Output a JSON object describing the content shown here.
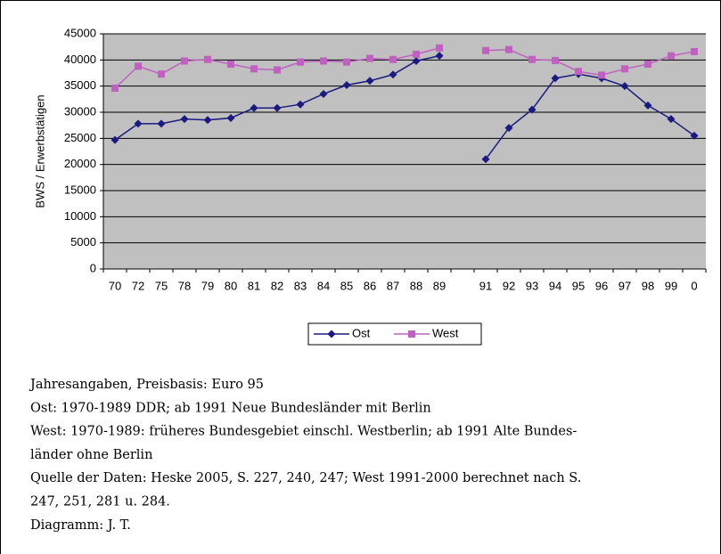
{
  "chart_data": {
    "type": "line",
    "y_label": "BWS  /  Erwerbstätigen",
    "categories": [
      "70",
      "72",
      "75",
      "78",
      "79",
      "80",
      "81",
      "82",
      "83",
      "84",
      "85",
      "86",
      "87",
      "88",
      "89",
      null,
      "91",
      "92",
      "93",
      "94",
      "95",
      "96",
      "97",
      "98",
      "99",
      "0"
    ],
    "series": [
      {
        "name": "Ost",
        "color": "#1a1a80",
        "marker": "diamond",
        "values": [
          24700,
          27800,
          27800,
          28700,
          28500,
          28900,
          30800,
          30800,
          31500,
          33500,
          35200,
          36000,
          37200,
          39800,
          40800,
          null,
          21000,
          27000,
          30500,
          36500,
          37300,
          36500,
          35000,
          31300,
          28700,
          25500
        ]
      },
      {
        "name": "West",
        "color": "#c060c0",
        "marker": "square",
        "values": [
          34600,
          38800,
          37300,
          39800,
          40100,
          39200,
          38300,
          38100,
          39600,
          39800,
          39600,
          40300,
          40100,
          41100,
          42300,
          null,
          41800,
          42000,
          40100,
          39900,
          37800,
          37100,
          38300,
          39200,
          40800,
          41600
        ]
      }
    ],
    "ylim": [
      0,
      45000
    ],
    "yticks": [
      0,
      5000,
      10000,
      15000,
      20000,
      25000,
      30000,
      35000,
      40000,
      45000
    ],
    "grid": true,
    "legend": "bottom"
  },
  "notes": [
    "Jahresangaben, Preisbasis: Euro 95",
    "Ost: 1970-1989 DDR; ab 1991 Neue Bundesländer mit Berlin",
    "West: 1970-1989: früheres Bundesgebiet einschl. Westberlin; ab 1991 Alte Bundes-",
    "länder ohne Berlin",
    "Quelle der Daten: Heske 2005, S. 227, 240, 247; West 1991-2000 berechnet nach S.",
    "247, 251, 281 u. 284.",
    "Diagramm: J. T."
  ]
}
